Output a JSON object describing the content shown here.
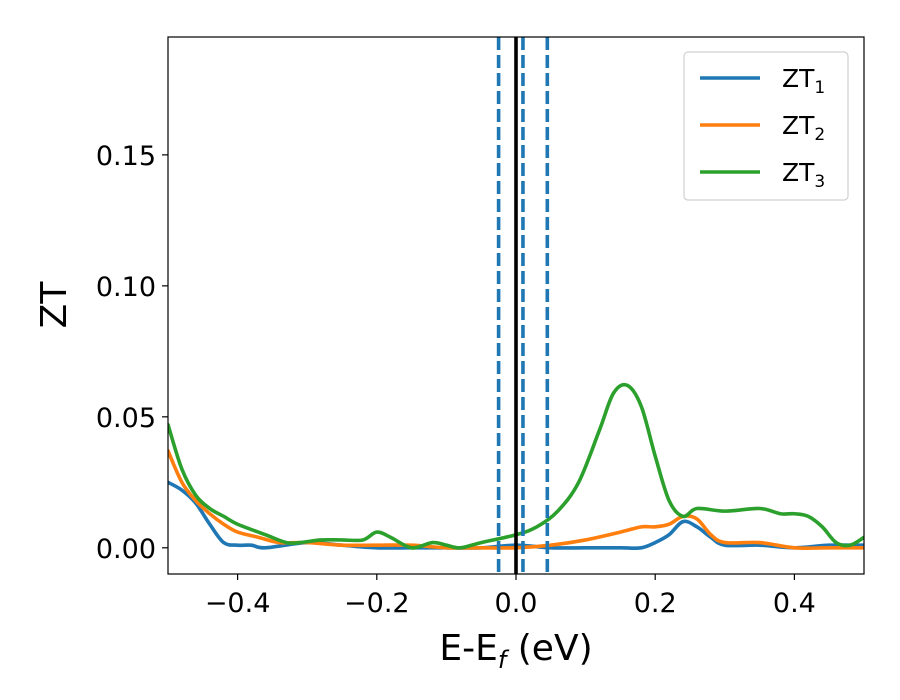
{
  "chart_data": {
    "type": "line",
    "xlabel": {
      "main": "E-E",
      "sub": "f",
      "suffix": " (eV)"
    },
    "ylabel": "ZT",
    "xlim": [
      -0.5,
      0.5
    ],
    "ylim": [
      -0.01,
      0.195
    ],
    "xticks": [
      -0.4,
      -0.2,
      0.0,
      0.2,
      0.4
    ],
    "xtick_labels": [
      "−0.4",
      "−0.2",
      "0.0",
      "0.2",
      "0.4"
    ],
    "yticks": [
      0.0,
      0.05,
      0.1,
      0.15
    ],
    "ytick_labels": [
      "0.00",
      "0.05",
      "0.10",
      "0.15"
    ],
    "grid": false,
    "legend_position": "top-right",
    "series": [
      {
        "name": "ZT",
        "name_sub": "1",
        "color": "#1f77b4",
        "x": [
          -0.5,
          -0.48,
          -0.46,
          -0.44,
          -0.42,
          -0.4,
          -0.38,
          -0.36,
          -0.3,
          -0.25,
          -0.2,
          -0.15,
          -0.1,
          -0.05,
          0.0,
          0.05,
          0.1,
          0.15,
          0.18,
          0.2,
          0.22,
          0.24,
          0.26,
          0.28,
          0.3,
          0.35,
          0.4,
          0.45,
          0.5
        ],
        "y": [
          0.025,
          0.022,
          0.017,
          0.009,
          0.002,
          0.001,
          0.001,
          0.0,
          0.002,
          0.001,
          0.0,
          0.0,
          0.0,
          0.0,
          0.001,
          0.0,
          0.0,
          0.0,
          0.0,
          0.002,
          0.005,
          0.01,
          0.008,
          0.004,
          0.001,
          0.001,
          0.0,
          0.001,
          0.001
        ]
      },
      {
        "name": "ZT",
        "name_sub": "2",
        "color": "#ff7f0e",
        "x": [
          -0.5,
          -0.48,
          -0.46,
          -0.44,
          -0.42,
          -0.4,
          -0.37,
          -0.34,
          -0.3,
          -0.25,
          -0.2,
          -0.15,
          -0.1,
          -0.05,
          0.0,
          0.05,
          0.1,
          0.15,
          0.18,
          0.2,
          0.22,
          0.24,
          0.26,
          0.28,
          0.3,
          0.35,
          0.4,
          0.45,
          0.5
        ],
        "y": [
          0.037,
          0.025,
          0.018,
          0.013,
          0.009,
          0.006,
          0.004,
          0.002,
          0.002,
          0.001,
          0.001,
          0.001,
          0.0,
          0.0,
          0.0,
          0.001,
          0.003,
          0.006,
          0.008,
          0.008,
          0.009,
          0.012,
          0.011,
          0.005,
          0.002,
          0.002,
          0.0,
          0.0,
          0.0
        ]
      },
      {
        "name": "ZT",
        "name_sub": "3",
        "color": "#2ca02c",
        "x": [
          -0.5,
          -0.48,
          -0.46,
          -0.44,
          -0.42,
          -0.4,
          -0.36,
          -0.33,
          -0.31,
          -0.28,
          -0.25,
          -0.22,
          -0.2,
          -0.18,
          -0.15,
          -0.12,
          -0.1,
          -0.08,
          -0.05,
          0.0,
          0.03,
          0.06,
          0.09,
          0.12,
          0.14,
          0.16,
          0.18,
          0.2,
          0.22,
          0.24,
          0.26,
          0.3,
          0.35,
          0.38,
          0.4,
          0.42,
          0.44,
          0.46,
          0.48,
          0.5
        ],
        "y": [
          0.047,
          0.03,
          0.02,
          0.015,
          0.012,
          0.009,
          0.005,
          0.002,
          0.002,
          0.003,
          0.003,
          0.003,
          0.006,
          0.004,
          0.0,
          0.002,
          0.001,
          0.0,
          0.002,
          0.005,
          0.008,
          0.014,
          0.025,
          0.045,
          0.059,
          0.062,
          0.054,
          0.035,
          0.018,
          0.012,
          0.015,
          0.014,
          0.015,
          0.013,
          0.013,
          0.012,
          0.008,
          0.002,
          0.001,
          0.004
        ]
      }
    ],
    "vlines": [
      {
        "x": 0.0,
        "color": "#000000",
        "style": "solid"
      },
      {
        "x": -0.025,
        "color": "#1f77b4",
        "style": "dashed"
      },
      {
        "x": 0.01,
        "color": "#1f77b4",
        "style": "dashed"
      },
      {
        "x": 0.045,
        "color": "#1f77b4",
        "style": "dashed"
      }
    ]
  }
}
